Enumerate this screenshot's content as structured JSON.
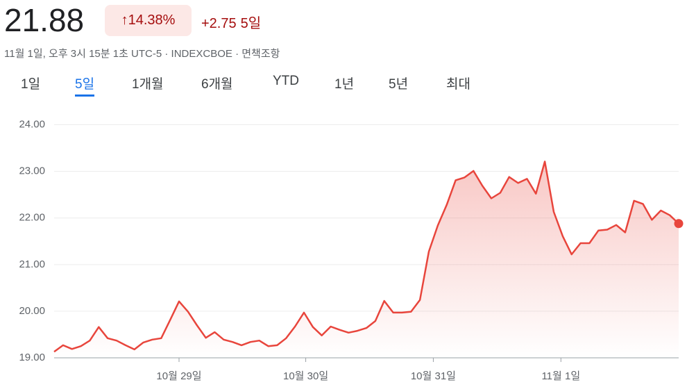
{
  "header": {
    "price": "21.88",
    "percent": "↑14.38%",
    "change": "+2.75",
    "period": "5일",
    "subtitle": "11월 1일, 오후 3시 15분 1초 UTC-5 · INDEXCBOE · 면책조항"
  },
  "tabs": [
    "1일",
    "5일",
    "1개월",
    "6개월",
    "YTD",
    "1년",
    "5년",
    "최대"
  ],
  "active_tab": 1,
  "chart_data": {
    "type": "line",
    "color": "#e8453c",
    "grid": true,
    "values": [
      19.13,
      19.27,
      19.19,
      19.25,
      19.37,
      19.66,
      19.42,
      19.37,
      19.27,
      19.18,
      19.33,
      19.39,
      19.42,
      19.81,
      20.21,
      19.99,
      19.7,
      19.43,
      19.55,
      19.39,
      19.34,
      19.27,
      19.34,
      19.37,
      19.25,
      19.27,
      19.42,
      19.67,
      19.97,
      19.66,
      19.48,
      19.67,
      19.6,
      19.54,
      19.58,
      19.64,
      19.79,
      20.22,
      19.97,
      19.97,
      19.99,
      20.24,
      21.28,
      21.84,
      22.28,
      22.81,
      22.87,
      23.01,
      22.69,
      22.42,
      22.54,
      22.88,
      22.75,
      22.84,
      22.52,
      23.21,
      22.13,
      21.61,
      21.22,
      21.46,
      21.46,
      21.73,
      21.75,
      21.85,
      21.69,
      22.37,
      22.3,
      21.96,
      22.16,
      22.06,
      21.88
    ],
    "xlim": [
      0,
      70
    ],
    "xticks": [
      {
        "value": 14,
        "label": "10월 29일"
      },
      {
        "value": 28.2,
        "label": "10월 30일"
      },
      {
        "value": 42.5,
        "label": "10월 31일"
      },
      {
        "value": 56.8,
        "label": "11월 1일"
      }
    ],
    "ylim": [
      19,
      24.5
    ],
    "yticks": [
      {
        "value": 19,
        "label": "19.00"
      },
      {
        "value": 20,
        "label": "20.00"
      },
      {
        "value": 21,
        "label": "21.00"
      },
      {
        "value": 22,
        "label": "22.00"
      },
      {
        "value": 23,
        "label": "23.00"
      },
      {
        "value": 24,
        "label": "24.00"
      }
    ]
  }
}
